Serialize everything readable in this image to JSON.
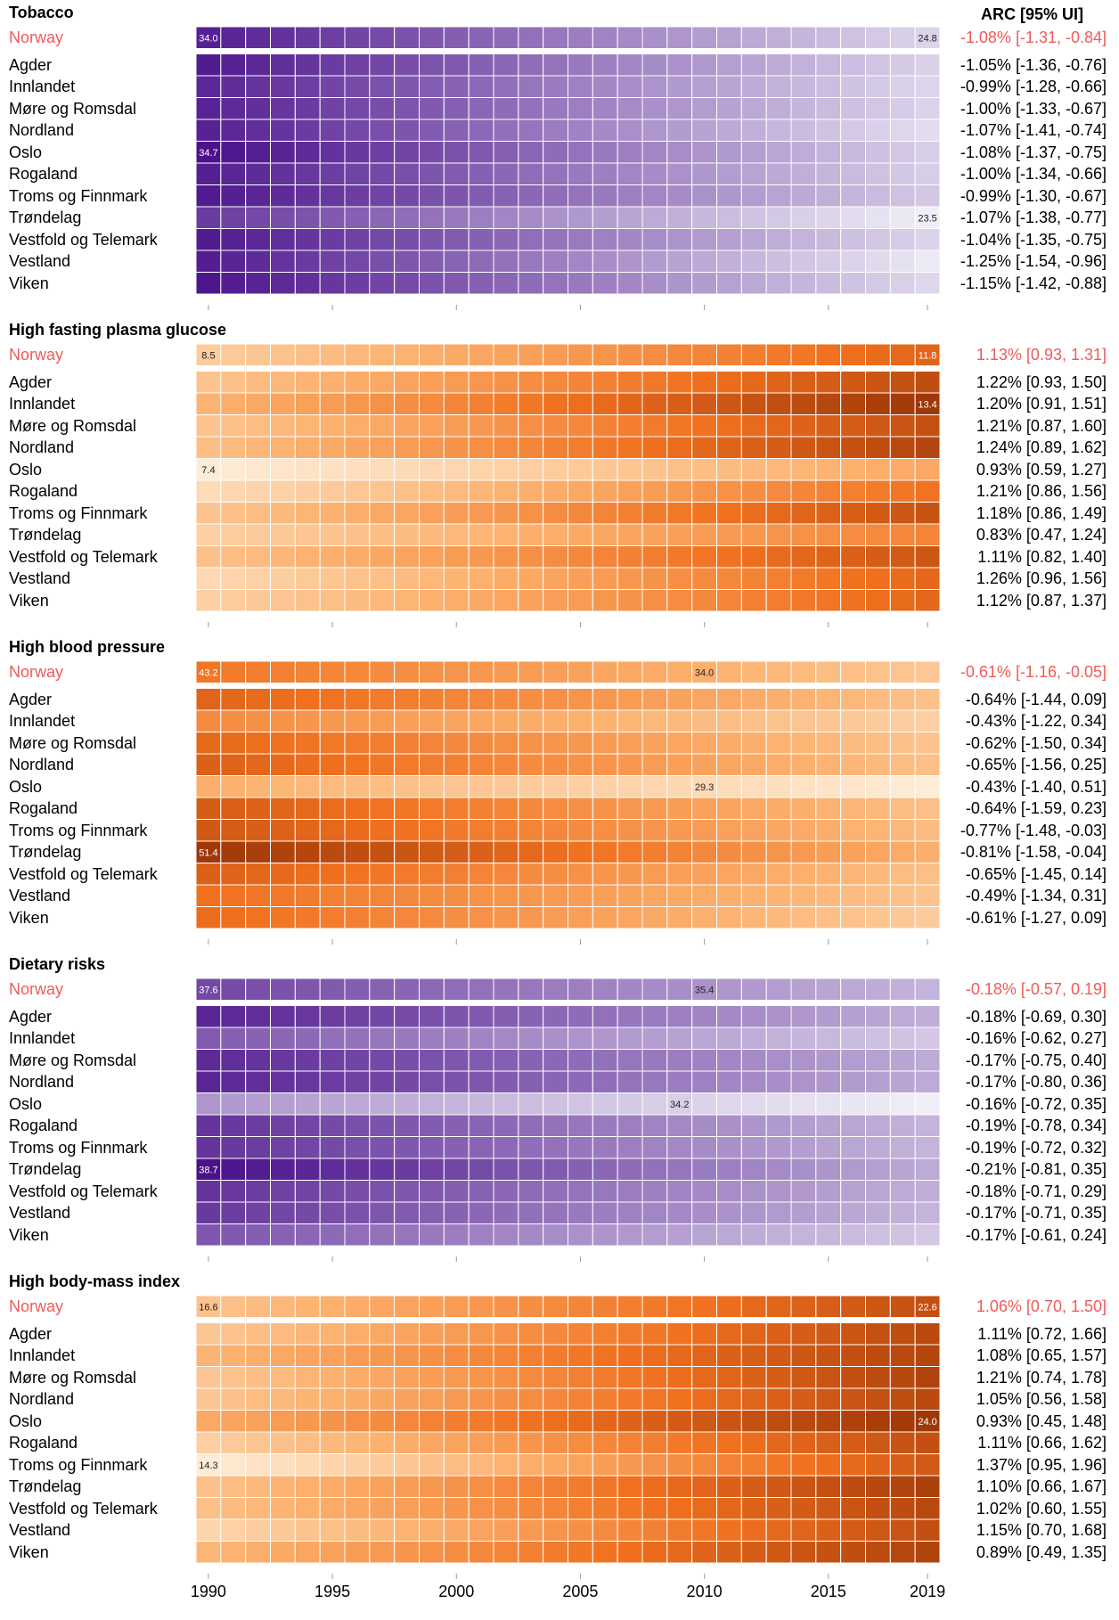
{
  "arc_header": "ARC [95% UI]",
  "x_tick_labels": [
    "1990",
    "1995",
    "2000",
    "2005",
    "2010",
    "2015",
    "2019"
  ],
  "chart_data": [
    {
      "type": "heatmap",
      "title": "Tobacco",
      "colorscale": "purple",
      "x": [
        1990,
        1991,
        1992,
        1993,
        1994,
        1995,
        1996,
        1997,
        1998,
        1999,
        2000,
        2001,
        2002,
        2003,
        2004,
        2005,
        2006,
        2007,
        2008,
        2009,
        2010,
        2011,
        2012,
        2013,
        2014,
        2015,
        2016,
        2017,
        2018,
        2019
      ],
      "rows": [
        {
          "name": "Norway",
          "national": true,
          "start": 34.0,
          "end": 24.8,
          "arc": "-1.08% [-1.31, -0.84]",
          "labels": [
            {
              "year": 1990,
              "text": "34.0"
            },
            {
              "year": 2019,
              "text": "24.8"
            }
          ]
        },
        {
          "name": "Agder",
          "start": 34.2,
          "end": 25.0,
          "arc": "-1.05% [-1.36, -0.76]"
        },
        {
          "name": "Innlandet",
          "start": 33.6,
          "end": 24.8,
          "arc": "-0.99% [-1.28, -0.66]"
        },
        {
          "name": "Møre og Romsdal",
          "start": 33.8,
          "end": 24.9,
          "arc": "-1.00% [-1.33, -0.67]"
        },
        {
          "name": "Nordland",
          "start": 33.9,
          "end": 24.4,
          "arc": "-1.07% [-1.41, -0.74]"
        },
        {
          "name": "Oslo",
          "start": 34.7,
          "end": 25.2,
          "arc": "-1.08% [-1.37, -0.75]",
          "labels": [
            {
              "year": 1990,
              "text": "34.7"
            }
          ]
        },
        {
          "name": "Rogaland",
          "start": 34.0,
          "end": 25.2,
          "arc": "-1.00% [-1.34, -0.66]"
        },
        {
          "name": "Troms og Finnmark",
          "start": 34.3,
          "end": 25.5,
          "arc": "-0.99% [-1.30, -0.67]"
        },
        {
          "name": "Trøndelag",
          "start": 32.6,
          "end": 23.5,
          "arc": "-1.07% [-1.38, -0.77]",
          "labels": [
            {
              "year": 2019,
              "text": "23.5"
            }
          ]
        },
        {
          "name": "Vestfold og Telemark",
          "start": 34.2,
          "end": 24.9,
          "arc": "-1.04% [-1.35, -0.75]"
        },
        {
          "name": "Vestland",
          "start": 34.1,
          "end": 23.8,
          "arc": "-1.25% [-1.54, -0.96]"
        },
        {
          "name": "Viken",
          "start": 34.5,
          "end": 24.7,
          "arc": "-1.15% [-1.42, -0.88]"
        }
      ]
    },
    {
      "type": "heatmap",
      "title": "High fasting plasma glucose",
      "colorscale": "orange",
      "x": [
        1990,
        1991,
        1992,
        1993,
        1994,
        1995,
        1996,
        1997,
        1998,
        1999,
        2000,
        2001,
        2002,
        2003,
        2004,
        2005,
        2006,
        2007,
        2008,
        2009,
        2010,
        2011,
        2012,
        2013,
        2014,
        2015,
        2016,
        2017,
        2018,
        2019
      ],
      "rows": [
        {
          "name": "Norway",
          "national": true,
          "start": 8.5,
          "end": 11.8,
          "arc": "1.13% [0.93, 1.31]",
          "labels": [
            {
              "year": 1990,
              "text": "8.5"
            },
            {
              "year": 2019,
              "text": "11.8"
            }
          ]
        },
        {
          "name": "Agder",
          "start": 8.8,
          "end": 12.6,
          "arc": "1.22% [0.93, 1.50]"
        },
        {
          "name": "Innlandet",
          "start": 9.4,
          "end": 13.4,
          "arc": "1.20% [0.91, 1.51]",
          "labels": [
            {
              "year": 2019,
              "text": "13.4"
            }
          ]
        },
        {
          "name": "Møre og Romsdal",
          "start": 8.8,
          "end": 12.5,
          "arc": "1.21% [0.87, 1.60]"
        },
        {
          "name": "Nordland",
          "start": 9.0,
          "end": 12.9,
          "arc": "1.24% [0.89, 1.62]"
        },
        {
          "name": "Oslo",
          "start": 7.4,
          "end": 9.7,
          "arc": "0.93% [0.59, 1.27]",
          "labels": [
            {
              "year": 1990,
              "text": "7.4"
            }
          ]
        },
        {
          "name": "Rogaland",
          "start": 8.0,
          "end": 11.3,
          "arc": "1.21% [0.86, 1.56]"
        },
        {
          "name": "Troms og Finnmark",
          "start": 8.8,
          "end": 12.4,
          "arc": "1.18% [0.86, 1.49]"
        },
        {
          "name": "Trøndelag",
          "start": 8.4,
          "end": 10.8,
          "arc": "0.83% [0.47, 1.24]"
        },
        {
          "name": "Vestfold og Telemark",
          "start": 8.9,
          "end": 12.3,
          "arc": "1.11% [0.82, 1.40]"
        },
        {
          "name": "Vestland",
          "start": 8.1,
          "end": 11.7,
          "arc": "1.26% [0.96, 1.56]"
        },
        {
          "name": "Viken",
          "start": 8.4,
          "end": 11.7,
          "arc": "1.12% [0.87, 1.37]"
        }
      ]
    },
    {
      "type": "heatmap",
      "title": "High blood pressure",
      "colorscale": "orange",
      "x": [
        1990,
        1991,
        1992,
        1993,
        1994,
        1995,
        1996,
        1997,
        1998,
        1999,
        2000,
        2001,
        2002,
        2003,
        2004,
        2005,
        2006,
        2007,
        2008,
        2009,
        2010,
        2011,
        2012,
        2013,
        2014,
        2015,
        2016,
        2017,
        2018,
        2019
      ],
      "rows": [
        {
          "name": "Norway",
          "national": true,
          "start": 43.2,
          "end": 34.0,
          "arc": "-0.61% [-1.16, -0.05]",
          "labels": [
            {
              "year": 1990,
              "text": "43.2"
            },
            {
              "year": 2010,
              "text": "34.0"
            }
          ]
        },
        {
          "name": "Agder",
          "start": 45.5,
          "end": 34.8,
          "arc": "-0.64% [-1.44, 0.09]"
        },
        {
          "name": "Innlandet",
          "start": 41.0,
          "end": 33.0,
          "arc": "-0.43% [-1.22, 0.34]"
        },
        {
          "name": "Møre og Romsdal",
          "start": 45.0,
          "end": 34.5,
          "arc": "-0.62% [-1.50, 0.34]"
        },
        {
          "name": "Nordland",
          "start": 46.0,
          "end": 35.0,
          "arc": "-0.65% [-1.56, 0.25]"
        },
        {
          "name": "Oslo",
          "start": 37.0,
          "end": 29.3,
          "arc": "-0.43% [-1.40, 0.51]",
          "labels": [
            {
              "year": 2010,
              "text": "29.3"
            }
          ]
        },
        {
          "name": "Rogaland",
          "start": 46.5,
          "end": 35.0,
          "arc": "-0.64% [-1.59, 0.23]"
        },
        {
          "name": "Troms og Finnmark",
          "start": 47.0,
          "end": 35.5,
          "arc": "-0.77% [-1.48, -0.03]"
        },
        {
          "name": "Trøndelag",
          "start": 51.4,
          "end": 37.0,
          "arc": "-0.81% [-1.58, -0.04]",
          "labels": [
            {
              "year": 1990,
              "text": "51.4"
            }
          ]
        },
        {
          "name": "Vestfold og Telemark",
          "start": 46.0,
          "end": 35.0,
          "arc": "-0.65% [-1.45, 0.14]"
        },
        {
          "name": "Vestland",
          "start": 44.0,
          "end": 34.5,
          "arc": "-0.49% [-1.34, 0.31]"
        },
        {
          "name": "Viken",
          "start": 44.5,
          "end": 33.5,
          "arc": "-0.61% [-1.27, 0.09]"
        }
      ]
    },
    {
      "type": "heatmap",
      "title": "Dietary risks",
      "colorscale": "purple",
      "x": [
        1990,
        1991,
        1992,
        1993,
        1994,
        1995,
        1996,
        1997,
        1998,
        1999,
        2000,
        2001,
        2002,
        2003,
        2004,
        2005,
        2006,
        2007,
        2008,
        2009,
        2010,
        2011,
        2012,
        2013,
        2014,
        2015,
        2016,
        2017,
        2018,
        2019
      ],
      "rows": [
        {
          "name": "Norway",
          "national": true,
          "start": 37.6,
          "end": 35.4,
          "arc": "-0.18% [-0.57, 0.19]",
          "labels": [
            {
              "year": 1990,
              "text": "37.6"
            },
            {
              "year": 2010,
              "text": "35.4"
            }
          ]
        },
        {
          "name": "Agder",
          "start": 38.3,
          "end": 35.5,
          "arc": "-0.18% [-0.69, 0.30]"
        },
        {
          "name": "Innlandet",
          "start": 37.2,
          "end": 35.0,
          "arc": "-0.16% [-0.62, 0.27]"
        },
        {
          "name": "Møre og Romsdal",
          "start": 38.2,
          "end": 35.6,
          "arc": "-0.17% [-0.75, 0.40]"
        },
        {
          "name": "Nordland",
          "start": 38.3,
          "end": 35.6,
          "arc": "-0.17% [-0.80, 0.36]"
        },
        {
          "name": "Oslo",
          "start": 36.0,
          "end": 34.2,
          "arc": "-0.16% [-0.72, 0.35]",
          "labels": [
            {
              "year": 2009,
              "text": "34.2"
            }
          ]
        },
        {
          "name": "Rogaland",
          "start": 38.0,
          "end": 35.4,
          "arc": "-0.19% [-0.78, 0.34]"
        },
        {
          "name": "Troms og Finnmark",
          "start": 38.0,
          "end": 35.4,
          "arc": "-0.19% [-0.72, 0.32]"
        },
        {
          "name": "Trøndelag",
          "start": 38.7,
          "end": 35.6,
          "arc": "-0.21% [-0.81, 0.35]",
          "labels": [
            {
              "year": 1990,
              "text": "38.7"
            }
          ]
        },
        {
          "name": "Vestfold og Telemark",
          "start": 38.0,
          "end": 35.5,
          "arc": "-0.18% [-0.71, 0.29]"
        },
        {
          "name": "Vestland",
          "start": 37.9,
          "end": 35.4,
          "arc": "-0.17% [-0.71, 0.35]"
        },
        {
          "name": "Viken",
          "start": 37.3,
          "end": 35.0,
          "arc": "-0.17% [-0.61, 0.24]"
        }
      ]
    },
    {
      "type": "heatmap",
      "title": "High body-mass index",
      "colorscale": "orange",
      "x": [
        1990,
        1991,
        1992,
        1993,
        1994,
        1995,
        1996,
        1997,
        1998,
        1999,
        2000,
        2001,
        2002,
        2003,
        2004,
        2005,
        2006,
        2007,
        2008,
        2009,
        2010,
        2011,
        2012,
        2013,
        2014,
        2015,
        2016,
        2017,
        2018,
        2019
      ],
      "rows": [
        {
          "name": "Norway",
          "national": true,
          "start": 16.6,
          "end": 22.6,
          "arc": "1.06% [0.70, 1.50]",
          "labels": [
            {
              "year": 1990,
              "text": "16.6"
            },
            {
              "year": 2019,
              "text": "22.6"
            }
          ]
        },
        {
          "name": "Agder",
          "start": 16.4,
          "end": 23.0,
          "arc": "1.11% [0.72, 1.66]"
        },
        {
          "name": "Innlandet",
          "start": 17.4,
          "end": 23.2,
          "arc": "1.08% [0.65, 1.57]"
        },
        {
          "name": "Møre og Romsdal",
          "start": 16.4,
          "end": 23.3,
          "arc": "1.21% [0.74, 1.78]"
        },
        {
          "name": "Nordland",
          "start": 16.5,
          "end": 23.0,
          "arc": "1.05% [0.56, 1.58]"
        },
        {
          "name": "Oslo",
          "start": 18.0,
          "end": 24.0,
          "arc": "0.93% [0.45, 1.48]",
          "labels": [
            {
              "year": 2019,
              "text": "24.0"
            }
          ]
        },
        {
          "name": "Rogaland",
          "start": 16.0,
          "end": 22.6,
          "arc": "1.11% [0.66, 1.62]"
        },
        {
          "name": "Troms og Finnmark",
          "start": 14.3,
          "end": 22.0,
          "arc": "1.37% [0.95, 1.96]",
          "labels": [
            {
              "year": 1990,
              "text": "14.3"
            }
          ]
        },
        {
          "name": "Trøndelag",
          "start": 16.7,
          "end": 23.5,
          "arc": "1.10% [0.66, 1.67]"
        },
        {
          "name": "Vestfold og Telemark",
          "start": 16.8,
          "end": 23.0,
          "arc": "1.02% [0.60, 1.55]"
        },
        {
          "name": "Vestland",
          "start": 15.6,
          "end": 22.6,
          "arc": "1.15% [0.70, 1.68]"
        },
        {
          "name": "Viken",
          "start": 17.3,
          "end": 23.3,
          "arc": "0.89% [0.49, 1.35]"
        }
      ]
    }
  ]
}
